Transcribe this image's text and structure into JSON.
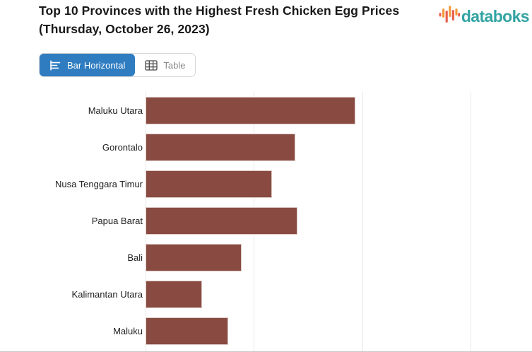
{
  "header": {
    "title_line1": "Top 10 Provinces with the Highest Fresh Chicken Egg Prices",
    "title_line2": "(Thursday, October 26, 2023)",
    "logo_text": "databoks"
  },
  "toolbar": {
    "bar_horizontal_label": "Bar Horizontal",
    "table_label": "Table",
    "active_view": "Bar Horizontal"
  },
  "colors": {
    "bar": "#884A41",
    "accent_blue": "#2F7CC1",
    "logo_teal": "#33A3A3",
    "logo_orange": "#F59B3E",
    "logo_red": "#E9604F",
    "gridline": "#E8E8E8"
  },
  "chart_data": {
    "type": "bar",
    "orientation": "horizontal",
    "title": "Top 10 Provinces with the Highest Fresh Chicken Egg Prices (Thursday, October 26, 2023)",
    "categories": [
      "Maluku Utara",
      "Gorontalo",
      "Nusa Tenggara Timur",
      "Papua Barat",
      "Bali",
      "Kalimantan Utara",
      "Maluku"
    ],
    "values": [
      34700,
      31900,
      30850,
      32000,
      29450,
      27600,
      28800
    ],
    "values_estimated": true,
    "note": "x-axis tick labels and rows 8-10 are cropped out of the visible screenshot; values estimated from bar lengths against gridlines",
    "xlabel": "",
    "ylabel": "",
    "xlim": [
      25000,
      40000
    ],
    "gridline_step": 5000,
    "grid": true,
    "legend": false,
    "visible_rows": 7,
    "bar_color": "#884A41"
  }
}
